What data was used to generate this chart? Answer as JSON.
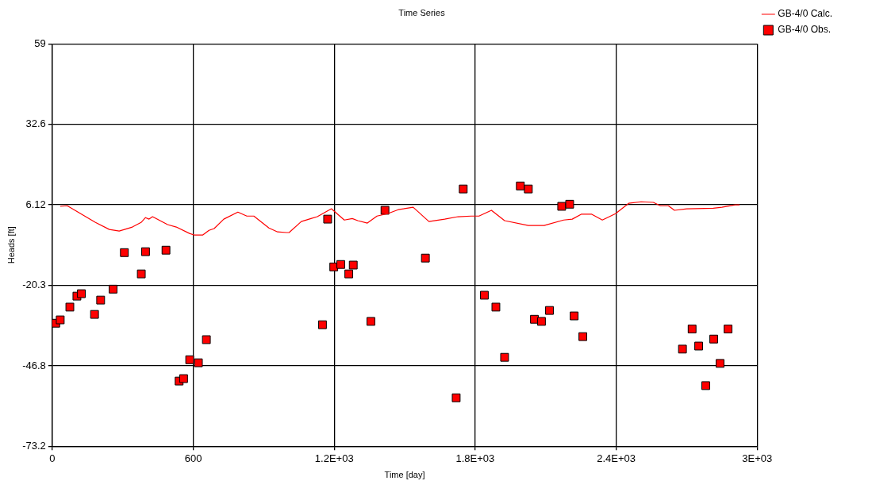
{
  "chart_data": {
    "type": "scatter",
    "title": "Time Series",
    "xlabel": "Time [day]",
    "ylabel": "Heads [ft]",
    "xlim": [
      0,
      3000
    ],
    "xticks": [
      0,
      600,
      {
        "value": 1200,
        "label": "1.2E+03"
      },
      {
        "value": 1800,
        "label": "1.8E+03"
      },
      {
        "value": 2400,
        "label": "2.4E+03"
      },
      {
        "value": 3000,
        "label": "3E+03"
      }
    ],
    "ylim": [
      -73.2,
      59
    ],
    "yticks": [
      -73.2,
      -46.8,
      -20.3,
      6.12,
      32.6,
      59
    ],
    "grid": true,
    "legend": "top right",
    "series": [
      {
        "name": "GB-4/0 Calc.",
        "type": "line",
        "marker": "none",
        "line_style": "solid",
        "color": "#ff0000",
        "x": [
          34,
          64,
          184,
          243,
          285,
          341,
          378,
          397,
          412,
          427,
          491,
          528,
          584,
          603,
          641,
          667,
          689,
          730,
          790,
          828,
          858,
          922,
          959,
          997,
          1008,
          1060,
          1101,
          1128,
          1188,
          1243,
          1277,
          1300,
          1341,
          1382,
          1427,
          1472,
          1536,
          1603,
          1670,
          1727,
          1783,
          1816,
          1869,
          1925,
          2026,
          2093,
          2176,
          2213,
          2251,
          2296,
          2341,
          2397,
          2453,
          2506,
          2558,
          2588,
          2622,
          2648,
          2700,
          2813,
          2850,
          2906,
          2925
        ],
        "values": [
          5.6,
          5.8,
          0.3,
          -2.0,
          -2.5,
          -1.2,
          0.3,
          1.9,
          1.4,
          2.2,
          -0.4,
          -1.2,
          -3.3,
          -3.8,
          -3.8,
          -2.3,
          -1.7,
          1.4,
          3.7,
          2.4,
          2.4,
          -1.5,
          -2.8,
          -3.0,
          -3.0,
          0.6,
          1.6,
          2.2,
          4.8,
          1.1,
          1.6,
          0.9,
          0.1,
          2.4,
          3.2,
          4.5,
          5.3,
          0.6,
          1.4,
          2.2,
          2.4,
          2.4,
          4.3,
          0.9,
          -0.7,
          -0.7,
          1.1,
          1.4,
          3.0,
          3.0,
          1.1,
          3.2,
          6.6,
          7.1,
          6.9,
          5.8,
          5.8,
          4.3,
          4.8,
          5.0,
          5.3,
          6.1,
          6.1
        ]
      },
      {
        "name": "GB-4/0 Obs.",
        "type": "scatter",
        "marker": "square",
        "color": "#ff0000",
        "x": [
          15,
          34,
          75,
          105,
          124,
          180,
          206,
          259,
          307,
          379,
          397,
          484,
          540,
          559,
          585,
          622,
          656,
          1150,
          1172,
          1198,
          1228,
          1262,
          1281,
          1356,
          1416,
          1588,
          1719,
          1749,
          1839,
          1888,
          1925,
          1992,
          2026,
          2052,
          2082,
          2116,
          2168,
          2202,
          2221,
          2258,
          2682,
          2723,
          2751,
          2781,
          2815,
          2842,
          2876
        ],
        "values": [
          -32.8,
          -31.7,
          -27.5,
          -23.9,
          -23.1,
          -29.9,
          -25.2,
          -21.6,
          -9.6,
          -16.6,
          -9.3,
          -8.8,
          -51.8,
          -51.0,
          -44.8,
          -45.8,
          -38.2,
          -33.3,
          1.4,
          -14.3,
          -13.5,
          -16.6,
          -13.7,
          -32.2,
          4.3,
          -11.4,
          -57.3,
          11.3,
          -23.6,
          -27.5,
          -44.0,
          12.3,
          11.3,
          -31.5,
          -32.2,
          -28.6,
          5.6,
          6.3,
          -30.4,
          -37.2,
          -41.3,
          -34.7,
          -40.3,
          -53.3,
          -38.0,
          -46.0,
          -34.7
        ]
      }
    ]
  }
}
